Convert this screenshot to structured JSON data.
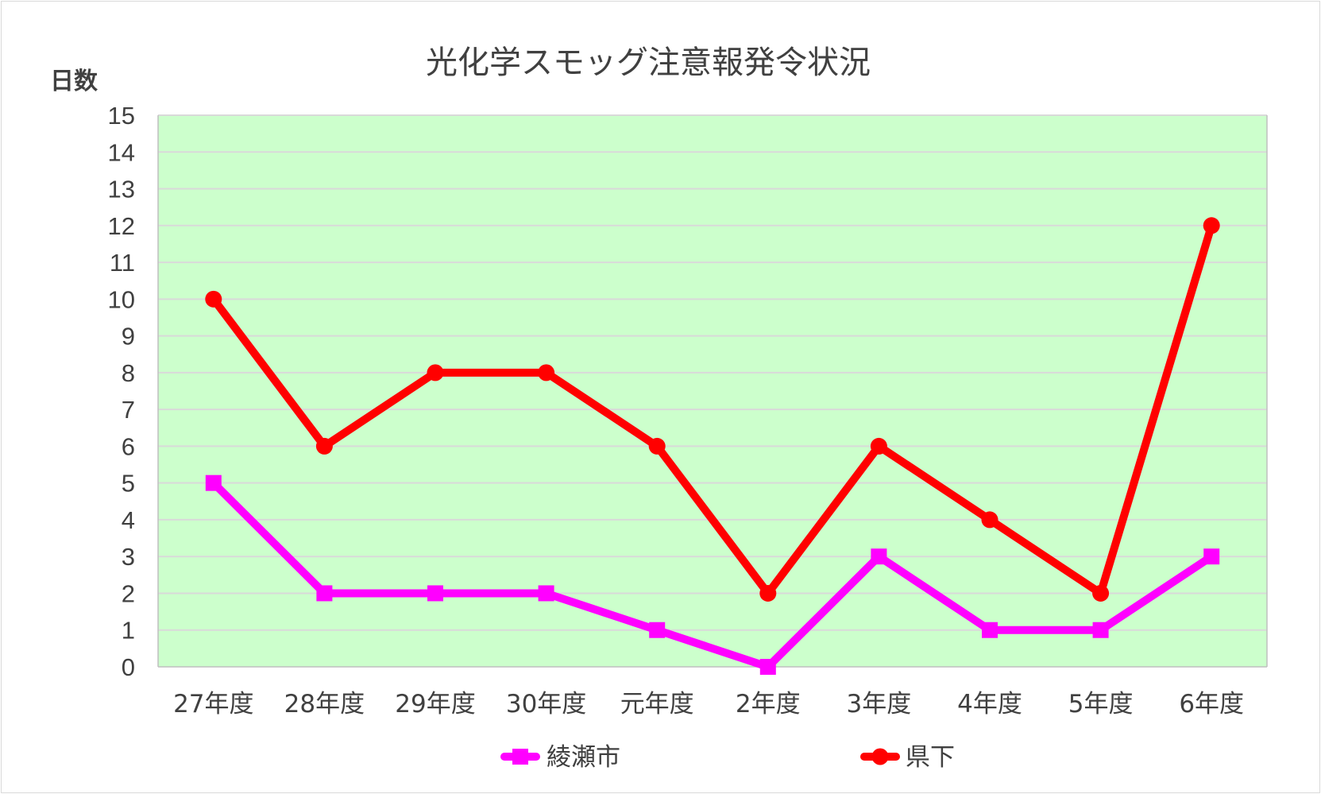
{
  "chart_data": {
    "type": "line",
    "title": "光化学スモッグ注意報発令状況",
    "ylabel": "日数",
    "xlabel": "",
    "ylim": [
      0,
      15
    ],
    "yticks": [
      0,
      1,
      2,
      3,
      4,
      5,
      6,
      7,
      8,
      9,
      10,
      11,
      12,
      13,
      14,
      15
    ],
    "categories": [
      "27年度",
      "28年度",
      "29年度",
      "30年度",
      "元年度",
      "2年度",
      "3年度",
      "4年度",
      "5年度",
      "6年度"
    ],
    "grid": true,
    "legend_position": "bottom",
    "plot_background": "#ccffcc",
    "series": [
      {
        "name": "綾瀬市",
        "values": [
          5,
          2,
          2,
          2,
          1,
          0,
          3,
          1,
          1,
          3
        ],
        "color": "#ff00ff",
        "marker": "square"
      },
      {
        "name": "県下",
        "values": [
          10,
          6,
          8,
          8,
          6,
          2,
          6,
          4,
          2,
          12
        ],
        "color": "#ff0000",
        "marker": "circle"
      }
    ]
  }
}
